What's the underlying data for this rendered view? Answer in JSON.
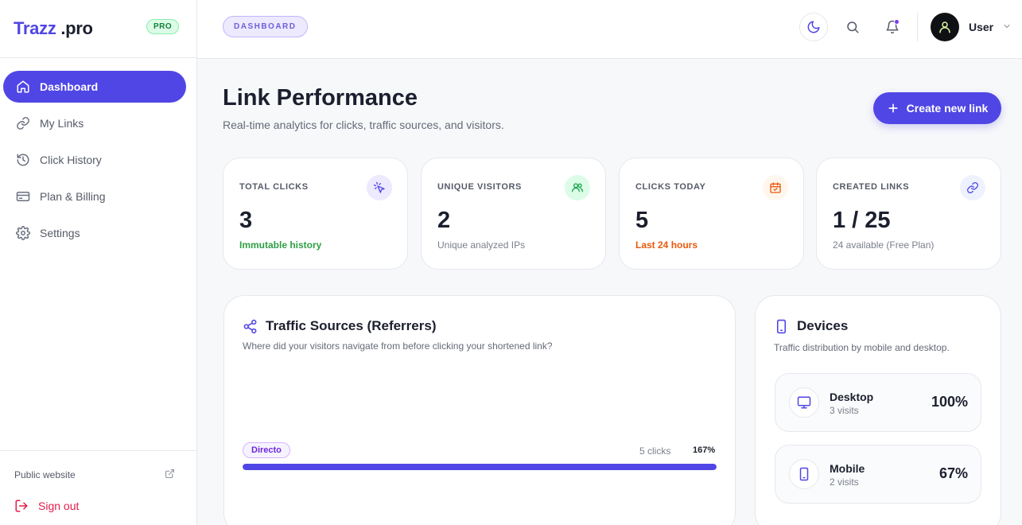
{
  "brand": {
    "name_part1": "Trazz",
    "name_part2": " .pro",
    "badge": "PRO"
  },
  "sidebar": {
    "items": [
      {
        "label": "Dashboard",
        "icon": "home-icon",
        "active": true
      },
      {
        "label": "My Links",
        "icon": "link-icon",
        "active": false
      },
      {
        "label": "Click History",
        "icon": "history-icon",
        "active": false
      },
      {
        "label": "Plan & Billing",
        "icon": "billing-icon",
        "active": false
      },
      {
        "label": "Settings",
        "icon": "gear-icon",
        "active": false
      }
    ],
    "public_website": "Public website",
    "sign_out": "Sign out"
  },
  "header": {
    "breadcrumb": "DASHBOARD",
    "user_name": "User"
  },
  "main": {
    "title": "Link Performance",
    "subtitle": "Real-time analytics for clicks, traffic sources, and visitors.",
    "create_button": "Create new link"
  },
  "stats": [
    {
      "label": "TOTAL CLICKS",
      "value": "3",
      "note": "Immutable history",
      "note_color": "#2f9e44",
      "icon": "cursor-click-icon",
      "icon_color": "#5046e5",
      "icon_bg": "#ede9fe"
    },
    {
      "label": "UNIQUE VISITORS",
      "value": "2",
      "note": "Unique analyzed IPs",
      "note_color": "#7a7f8c",
      "icon": "users-icon",
      "icon_color": "#16a34a",
      "icon_bg": "#dcfce7"
    },
    {
      "label": "CLICKS TODAY",
      "value": "5",
      "note": "Last 24 hours",
      "note_color": "#ea580c",
      "icon": "calendar-check-icon",
      "icon_color": "#ea580c",
      "icon_bg": "#fff7ed"
    },
    {
      "label": "CREATED LINKS",
      "value": "1 / 25",
      "note": "24 available (Free Plan)",
      "note_color": "#7a7f8c",
      "icon": "link-icon",
      "icon_color": "#5046e5",
      "icon_bg": "#eef2ff"
    }
  ],
  "traffic": {
    "title": "Traffic Sources (Referrers)",
    "subtitle": "Where did your visitors navigate from before clicking your shortened link?",
    "referrers": [
      {
        "name": "Directo",
        "clicks": "5 clicks",
        "percent": "167%",
        "bar_fraction": 1.0
      }
    ]
  },
  "devices": {
    "title": "Devices",
    "subtitle": "Traffic distribution by mobile and desktop.",
    "items": [
      {
        "name": "Desktop",
        "visits": "3 visits",
        "percent": "100%",
        "icon": "monitor-icon"
      },
      {
        "name": "Mobile",
        "visits": "2 visits",
        "percent": "67%",
        "icon": "smartphone-icon"
      }
    ]
  }
}
